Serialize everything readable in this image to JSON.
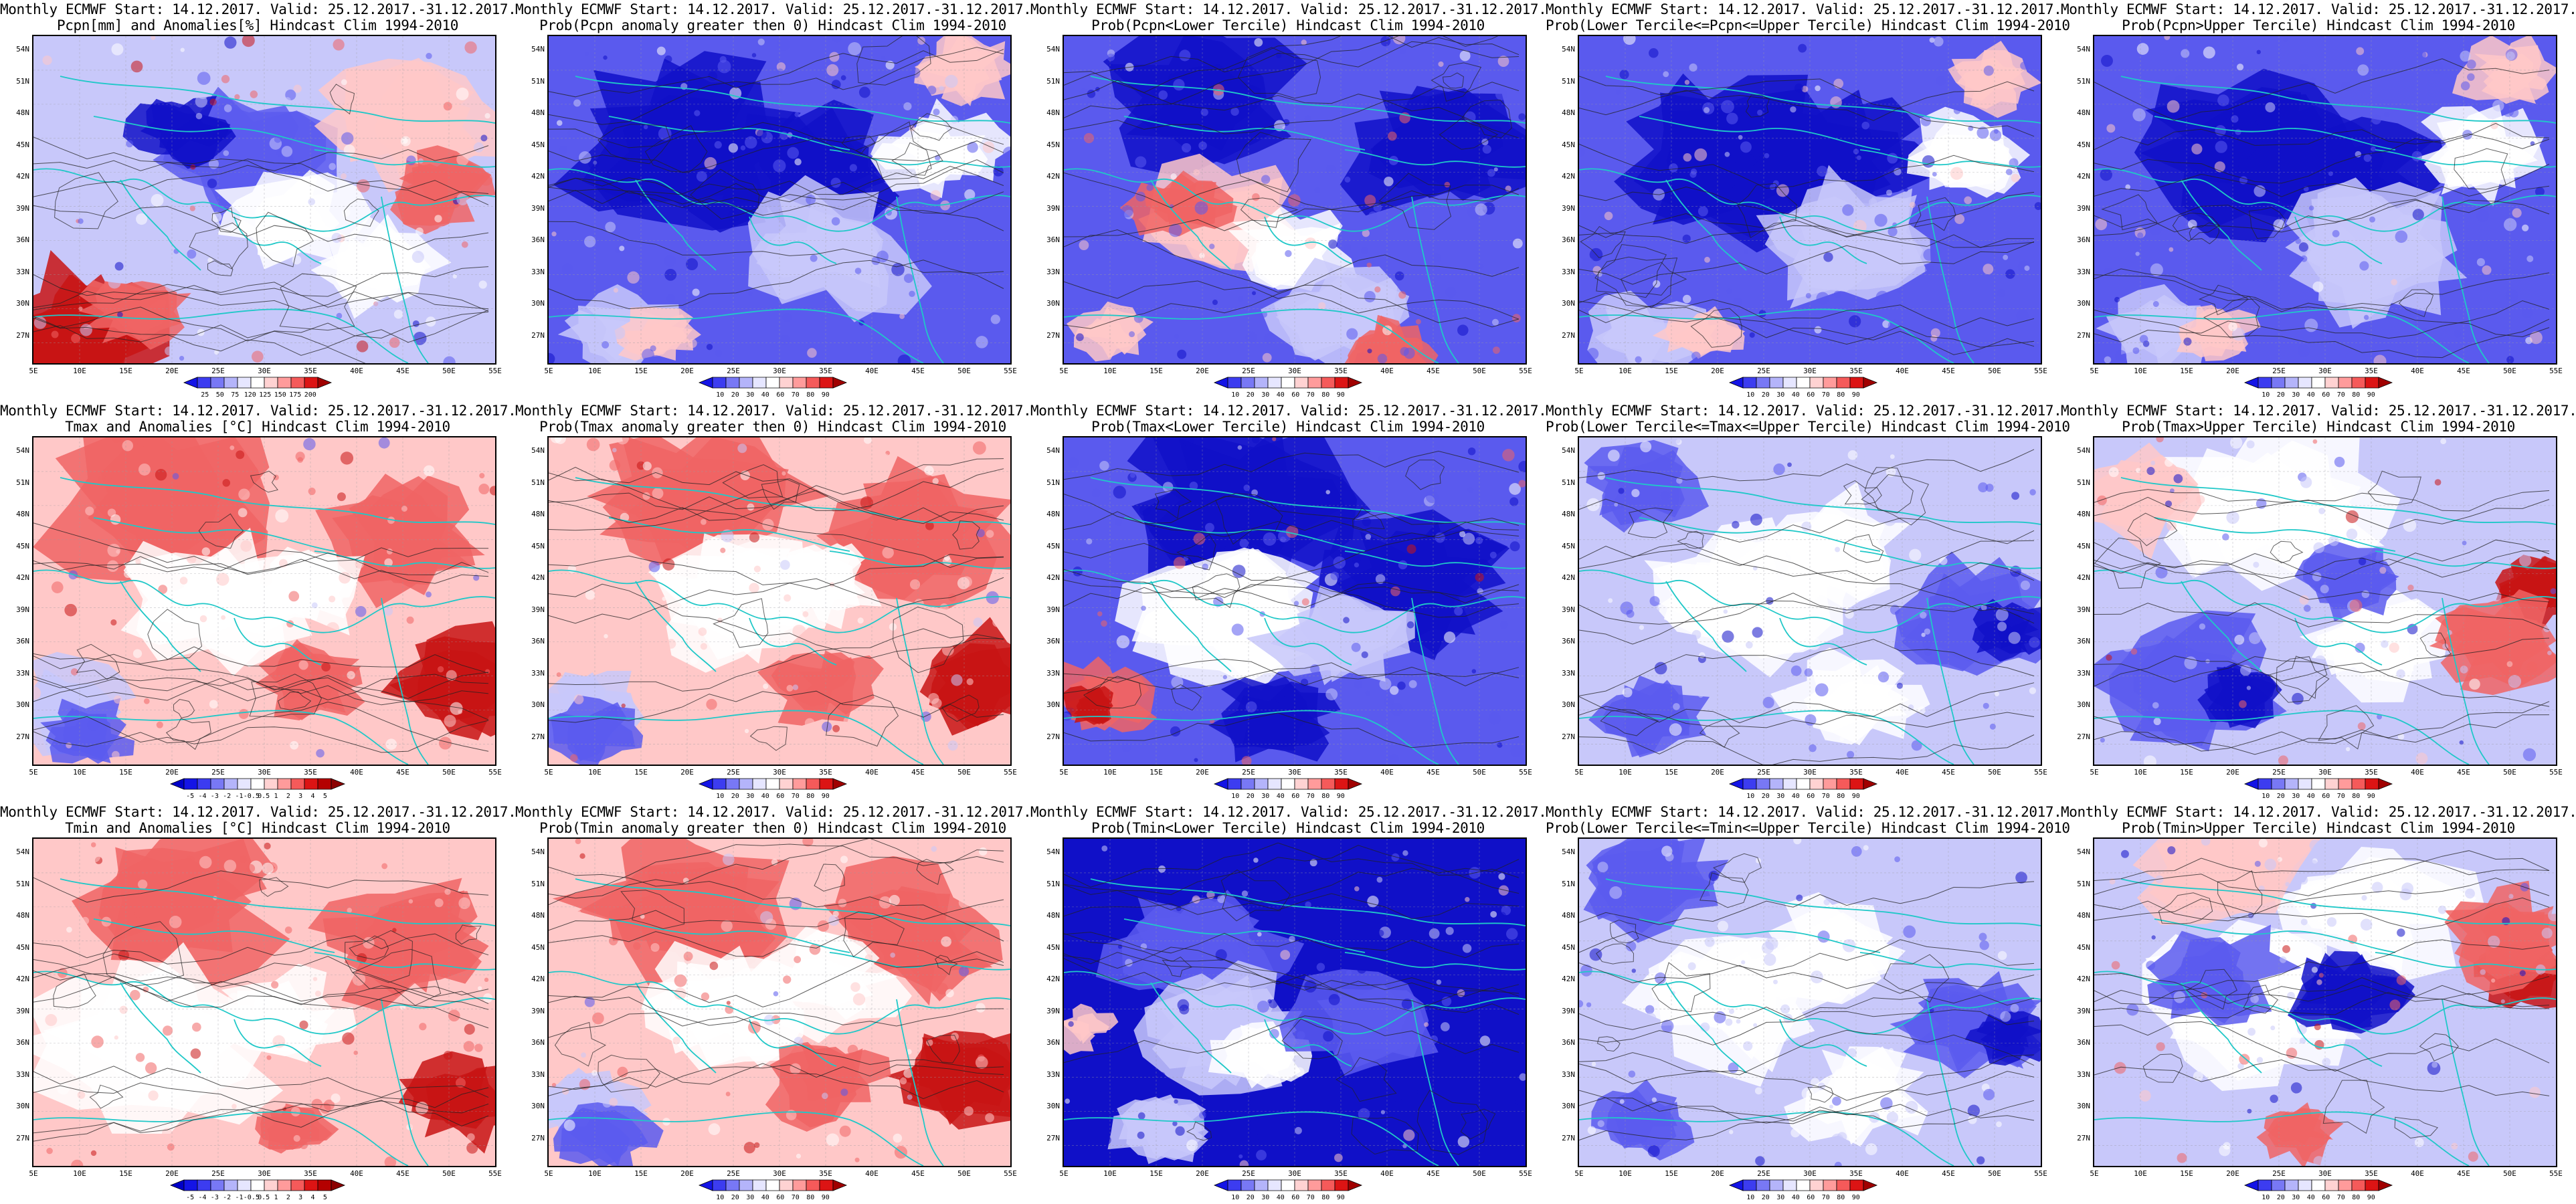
{
  "rows": [
    {
      "variable": "precipitation",
      "panels": [
        {
          "title1": "Monthly ECMWF Start: 14.12.2017. Valid: 25.12.2017.-31.12.2017.",
          "title2": "Pcpn[mm] and Anomalies[%] Hindcast Clim 1994-2010",
          "scheme": "pcpn",
          "colorbar": "anom_pcpn"
        },
        {
          "title1": "Monthly ECMWF Start: 14.12.2017. Valid: 25.12.2017.-31.12.2017.",
          "title2": "Prob(Pcpn anomaly greater then 0) Hindcast Clim 1994-2010",
          "scheme": "probblue",
          "colorbar": "prob"
        },
        {
          "title1": "Monthly ECMWF Start: 14.12.2017. Valid: 25.12.2017.-31.12.2017.",
          "title2": "Prob(Pcpn<Lower Tercile) Hindcast Clim 1994-2010",
          "scheme": "mixedred",
          "colorbar": "prob"
        },
        {
          "title1": "Monthly ECMWF Start: 14.12.2017. Valid: 25.12.2017.-31.12.2017.",
          "title2": "Prob(Lower Tercile<=Pcpn<=Upper Tercile) Hindcast Clim 1994-2010",
          "scheme": "probblue",
          "colorbar": "prob"
        },
        {
          "title1": "Monthly ECMWF Start: 14.12.2017. Valid: 25.12.2017.-31.12.2017.",
          "title2": "Prob(Pcpn>Upper Tercile) Hindcast Clim 1994-2010",
          "scheme": "probblue",
          "colorbar": "prob"
        }
      ]
    },
    {
      "variable": "tmax",
      "panels": [
        {
          "title1": "Monthly ECMWF Start: 14.12.2017. Valid: 25.12.2017.-31.12.2017.",
          "title2": "Tmax and Anomalies [°C] Hindcast Clim 1994-2010",
          "scheme": "warm",
          "colorbar": "anom_temp"
        },
        {
          "title1": "Monthly ECMWF Start: 14.12.2017. Valid: 25.12.2017.-31.12.2017.",
          "title2": "Prob(Tmax anomaly greater then 0) Hindcast Clim 1994-2010",
          "scheme": "warm",
          "colorbar": "prob"
        },
        {
          "title1": "Monthly ECMWF Start: 14.12.2017. Valid: 25.12.2017.-31.12.2017.",
          "title2": "Prob(Tmax<Lower Tercile) Hindcast Clim 1994-2010",
          "scheme": "coldred",
          "colorbar": "prob"
        },
        {
          "title1": "Monthly ECMWF Start: 14.12.2017. Valid: 25.12.2017.-31.12.2017.",
          "title2": "Prob(Lower Tercile<=Tmax<=Upper Tercile) Hindcast Clim 1994-2010",
          "scheme": "paleblue",
          "colorbar": "prob"
        },
        {
          "title1": "Monthly ECMWF Start: 14.12.2017. Valid: 25.12.2017.-31.12.2017.",
          "title2": "Prob(Tmax>Upper Tercile) Hindcast Clim 1994-2010",
          "scheme": "eastred",
          "colorbar": "prob"
        }
      ]
    },
    {
      "variable": "tmin",
      "panels": [
        {
          "title1": "Monthly ECMWF Start: 14.12.2017. Valid: 25.12.2017.-31.12.2017.",
          "title2": "Tmin and Anomalies [°C] Hindcast Clim 1994-2010",
          "scheme": "warmwhite",
          "colorbar": "anom_temp"
        },
        {
          "title1": "Monthly ECMWF Start: 14.12.2017. Valid: 25.12.2017.-31.12.2017.",
          "title2": "Prob(Tmin anomaly greater then 0) Hindcast Clim 1994-2010",
          "scheme": "warm",
          "colorbar": "prob"
        },
        {
          "title1": "Monthly ECMWF Start: 14.12.2017. Valid: 25.12.2017.-31.12.2017.",
          "title2": "Prob(Tmin<Lower Tercile) Hindcast Clim 1994-2010",
          "scheme": "deepblue",
          "colorbar": "prob"
        },
        {
          "title1": "Monthly ECMWF Start: 14.12.2017. Valid: 25.12.2017.-31.12.2017.",
          "title2": "Prob(Lower Tercile<=Tmin<=Upper Tercile) Hindcast Clim 1994-2010",
          "scheme": "paleblue",
          "colorbar": "prob"
        },
        {
          "title1": "Monthly ECMWF Start: 14.12.2017. Valid: 25.12.2017.-31.12.2017.",
          "title2": "Prob(Tmin>Upper Tercile) Hindcast Clim 1994-2010",
          "scheme": "bandblue",
          "colorbar": "prob"
        }
      ]
    }
  ],
  "lat_labels": [
    "54N",
    "51N",
    "48N",
    "45N",
    "42N",
    "39N",
    "36N",
    "33N",
    "30N",
    "27N"
  ],
  "lon_labels": [
    "5E",
    "10E",
    "15E",
    "20E",
    "25E",
    "30E",
    "35E",
    "40E",
    "45E",
    "50E",
    "55E"
  ],
  "colorbars": {
    "prob": {
      "ticks": [
        "10",
        "20",
        "30",
        "40",
        "60",
        "70",
        "80",
        "90"
      ],
      "colors": [
        "#1414e6",
        "#3c3cf0",
        "#7878f5",
        "#b4b4fa",
        "#e6e6ff",
        "#ffffff",
        "#ffd2d2",
        "#ff9b9b",
        "#f55a5a",
        "#dc1414",
        "#a00000"
      ]
    },
    "anom_pcpn": {
      "ticks": [
        "25",
        "50",
        "75",
        "120",
        "125",
        "150",
        "175",
        "200"
      ],
      "colors": [
        "#1414e6",
        "#3c3cf0",
        "#7878f5",
        "#b4b4fa",
        "#e6e6ff",
        "#ffffff",
        "#ffd2d2",
        "#ff9b9b",
        "#f55a5a",
        "#dc1414",
        "#a00000"
      ]
    },
    "anom_temp": {
      "ticks": [
        "-5",
        "-4",
        "-3",
        "-2",
        "-1",
        "-0.5",
        "0.5",
        "1",
        "2",
        "3",
        "4",
        "5"
      ],
      "colors": [
        "#0000c8",
        "#1414e6",
        "#3c3cf0",
        "#7878f5",
        "#b4b4fa",
        "#e6e6ff",
        "#ffffff",
        "#ffd2d2",
        "#ff9b9b",
        "#f55a5a",
        "#dc1414",
        "#b40000",
        "#8c0000"
      ]
    }
  },
  "palette": {
    "coast": "#20c8c8",
    "contour": "#222222",
    "deep_blue": "#1010c8",
    "mid_blue": "#5a5aee",
    "pale_blue": "#c8c8fa",
    "white": "#ffffff",
    "pale_red": "#ffc8c8",
    "mid_red": "#f06464",
    "deep_red": "#c81414"
  }
}
